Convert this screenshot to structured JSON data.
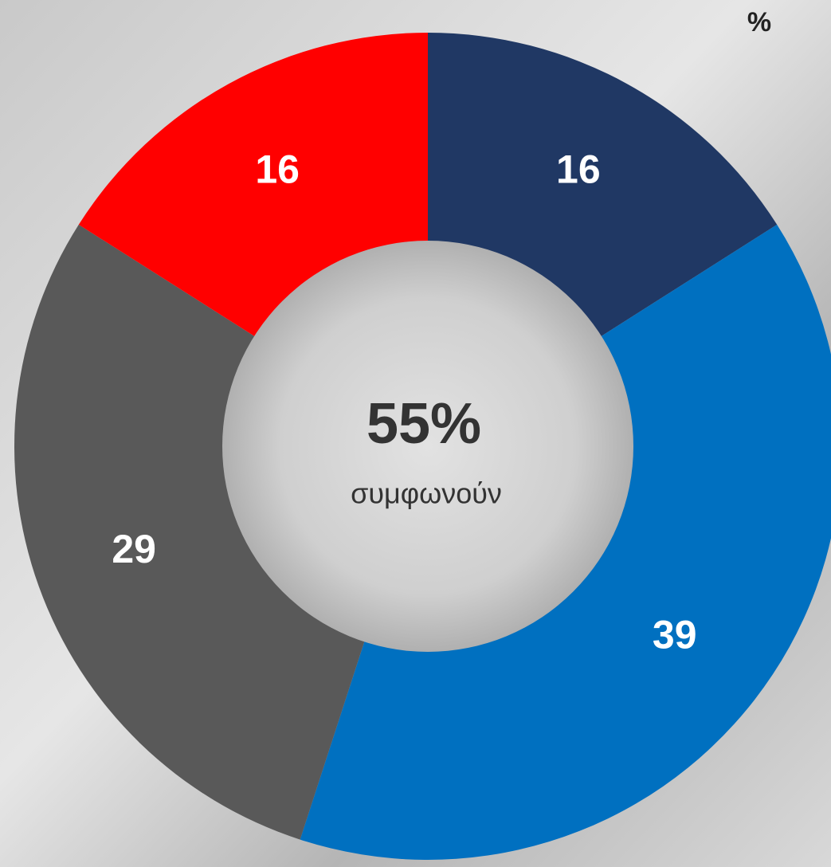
{
  "chart_data": {
    "type": "donut",
    "values": [
      16,
      39,
      29,
      16
    ],
    "colors": [
      "#203864",
      "#0070c0",
      "#595959",
      "#ff0000"
    ],
    "center_label": "55%",
    "center_sublabel": "συμφωνούν",
    "unit_label": "%"
  }
}
